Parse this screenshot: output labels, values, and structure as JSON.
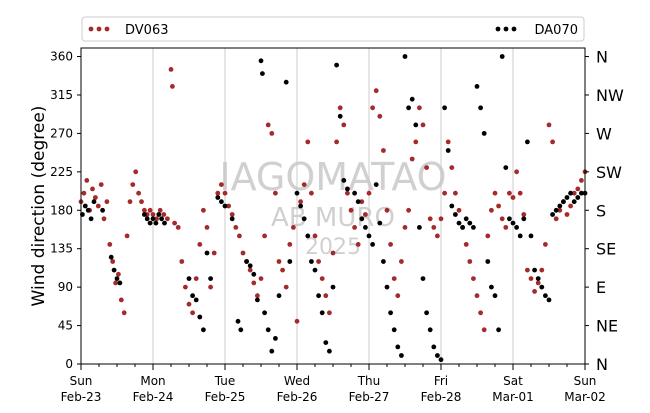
{
  "chart_data": {
    "type": "scatter",
    "ylabel": "Wind direction (degree)",
    "xlabel": "",
    "title": "",
    "ylim": [
      0,
      370
    ],
    "yticks": [
      0,
      45,
      90,
      135,
      180,
      225,
      270,
      315,
      360
    ],
    "compass_labels": [
      {
        "value": 360,
        "label": "N"
      },
      {
        "value": 315,
        "label": "NW"
      },
      {
        "value": 270,
        "label": "W"
      },
      {
        "value": 225,
        "label": "SW"
      },
      {
        "value": 180,
        "label": "S"
      },
      {
        "value": 135,
        "label": "SE"
      },
      {
        "value": 90,
        "label": "E"
      },
      {
        "value": 45,
        "label": "NE"
      },
      {
        "value": 0,
        "label": "N"
      }
    ],
    "xlim_days": [
      0,
      7
    ],
    "xticks": [
      {
        "day": 0,
        "top": "Sun",
        "bottom": "Feb-23"
      },
      {
        "day": 1,
        "top": "Mon",
        "bottom": "Feb-24"
      },
      {
        "day": 2,
        "top": "Tue",
        "bottom": "Feb-25"
      },
      {
        "day": 3,
        "top": "Wed",
        "bottom": "Feb-26"
      },
      {
        "day": 4,
        "top": "Thu",
        "bottom": "Feb-27"
      },
      {
        "day": 5,
        "top": "Fri",
        "bottom": "Feb-28"
      },
      {
        "day": 6,
        "top": "Sat",
        "bottom": "Mar-01"
      },
      {
        "day": 7,
        "top": "Sun",
        "bottom": "Mar-02"
      }
    ],
    "minor_ticks_per_day": 4,
    "grid": "vertical-major",
    "legend_placement": "top",
    "watermark": [
      "IAGOMATAO",
      "AB MURO",
      "2025"
    ],
    "series": [
      {
        "name": "DV063",
        "color": "#a52a2a",
        "points": [
          [
            0.0,
            190
          ],
          [
            0.04,
            200
          ],
          [
            0.08,
            215
          ],
          [
            0.12,
            180
          ],
          [
            0.16,
            205
          ],
          [
            0.2,
            195
          ],
          [
            0.24,
            185
          ],
          [
            0.28,
            210
          ],
          [
            0.32,
            170
          ],
          [
            0.36,
            190
          ],
          [
            0.4,
            140
          ],
          [
            0.44,
            120
          ],
          [
            0.48,
            95
          ],
          [
            0.52,
            105
          ],
          [
            0.56,
            75
          ],
          [
            0.6,
            60
          ],
          [
            0.64,
            150
          ],
          [
            0.68,
            190
          ],
          [
            0.72,
            210
          ],
          [
            0.76,
            225
          ],
          [
            0.8,
            200
          ],
          [
            0.84,
            190
          ],
          [
            0.88,
            180
          ],
          [
            0.92,
            175
          ],
          [
            0.96,
            180
          ],
          [
            1.0,
            175
          ],
          [
            1.05,
            170
          ],
          [
            1.1,
            180
          ],
          [
            1.15,
            175
          ],
          [
            1.2,
            170
          ],
          [
            1.25,
            345
          ],
          [
            1.27,
            325
          ],
          [
            1.3,
            165
          ],
          [
            1.35,
            160
          ],
          [
            1.4,
            120
          ],
          [
            1.45,
            90
          ],
          [
            1.5,
            70
          ],
          [
            1.55,
            60
          ],
          [
            1.6,
            100
          ],
          [
            1.65,
            140
          ],
          [
            1.7,
            180
          ],
          [
            1.75,
            160
          ],
          [
            1.8,
            90
          ],
          [
            1.85,
            130
          ],
          [
            1.9,
            200
          ],
          [
            1.95,
            210
          ],
          [
            2.0,
            200
          ],
          [
            2.05,
            185
          ],
          [
            2.1,
            175
          ],
          [
            2.15,
            160
          ],
          [
            2.2,
            150
          ],
          [
            2.25,
            130
          ],
          [
            2.3,
            120
          ],
          [
            2.35,
            110
          ],
          [
            2.4,
            95
          ],
          [
            2.45,
            80
          ],
          [
            2.5,
            100
          ],
          [
            2.55,
            150
          ],
          [
            2.6,
            280
          ],
          [
            2.65,
            270
          ],
          [
            2.7,
            200
          ],
          [
            2.75,
            120
          ],
          [
            2.8,
            110
          ],
          [
            2.85,
            90
          ],
          [
            2.9,
            140
          ],
          [
            2.95,
            160
          ],
          [
            3.0,
            50
          ],
          [
            3.05,
            190
          ],
          [
            3.1,
            210
          ],
          [
            3.15,
            260
          ],
          [
            3.2,
            200
          ],
          [
            3.25,
            150
          ],
          [
            3.3,
            120
          ],
          [
            3.35,
            100
          ],
          [
            3.4,
            80
          ],
          [
            3.45,
            60
          ],
          [
            3.5,
            130
          ],
          [
            3.55,
            260
          ],
          [
            3.6,
            300
          ],
          [
            3.65,
            280
          ],
          [
            3.7,
            200
          ],
          [
            3.75,
            180
          ],
          [
            3.8,
            160
          ],
          [
            3.85,
            140
          ],
          [
            3.9,
            190
          ],
          [
            3.95,
            175
          ],
          [
            4.0,
            200
          ],
          [
            4.05,
            300
          ],
          [
            4.1,
            320
          ],
          [
            4.15,
            290
          ],
          [
            4.2,
            250
          ],
          [
            4.25,
            180
          ],
          [
            4.3,
            140
          ],
          [
            4.35,
            100
          ],
          [
            4.4,
            80
          ],
          [
            4.45,
            120
          ],
          [
            4.5,
            160
          ],
          [
            4.55,
            180
          ],
          [
            4.6,
            240
          ],
          [
            4.65,
            260
          ],
          [
            4.7,
            300
          ],
          [
            4.75,
            280
          ],
          [
            4.8,
            230
          ],
          [
            4.85,
            170
          ],
          [
            4.9,
            160
          ],
          [
            4.95,
            150
          ],
          [
            5.0,
            170
          ],
          [
            5.05,
            200
          ],
          [
            5.1,
            260
          ],
          [
            5.15,
            230
          ],
          [
            5.2,
            200
          ],
          [
            5.25,
            180
          ],
          [
            5.3,
            160
          ],
          [
            5.35,
            140
          ],
          [
            5.4,
            120
          ],
          [
            5.45,
            100
          ],
          [
            5.5,
            80
          ],
          [
            5.55,
            60
          ],
          [
            5.6,
            40
          ],
          [
            5.65,
            150
          ],
          [
            5.7,
            180
          ],
          [
            5.75,
            200
          ],
          [
            5.8,
            185
          ],
          [
            5.85,
            170
          ],
          [
            5.9,
            160
          ],
          [
            5.95,
            200
          ],
          [
            6.0,
            195
          ],
          [
            6.05,
            225
          ],
          [
            6.1,
            200
          ],
          [
            6.15,
            175
          ],
          [
            6.2,
            110
          ],
          [
            6.25,
            100
          ],
          [
            6.3,
            85
          ],
          [
            6.35,
            95
          ],
          [
            6.4,
            110
          ],
          [
            6.45,
            140
          ],
          [
            6.5,
            280
          ],
          [
            6.55,
            260
          ],
          [
            6.6,
            170
          ],
          [
            6.65,
            180
          ],
          [
            6.7,
            190
          ],
          [
            6.75,
            175
          ],
          [
            6.8,
            185
          ],
          [
            6.85,
            200
          ],
          [
            6.9,
            205
          ],
          [
            6.95,
            215
          ],
          [
            7.0,
            225
          ]
        ]
      },
      {
        "name": "DA070",
        "color": "#000000",
        "points": [
          [
            0.02,
            175
          ],
          [
            0.06,
            185
          ],
          [
            0.1,
            180
          ],
          [
            0.14,
            170
          ],
          [
            0.18,
            190
          ],
          [
            0.3,
            180
          ],
          [
            0.42,
            125
          ],
          [
            0.46,
            110
          ],
          [
            0.5,
            100
          ],
          [
            0.54,
            95
          ],
          [
            0.88,
            175
          ],
          [
            0.92,
            170
          ],
          [
            0.96,
            165
          ],
          [
            1.0,
            170
          ],
          [
            1.04,
            165
          ],
          [
            1.08,
            175
          ],
          [
            1.12,
            170
          ],
          [
            1.16,
            165
          ],
          [
            1.5,
            100
          ],
          [
            1.55,
            80
          ],
          [
            1.6,
            75
          ],
          [
            1.65,
            55
          ],
          [
            1.7,
            40
          ],
          [
            1.75,
            130
          ],
          [
            1.8,
            100
          ],
          [
            1.9,
            195
          ],
          [
            1.95,
            190
          ],
          [
            2.0,
            185
          ],
          [
            2.1,
            170
          ],
          [
            2.18,
            50
          ],
          [
            2.22,
            40
          ],
          [
            2.3,
            120
          ],
          [
            2.35,
            115
          ],
          [
            2.4,
            105
          ],
          [
            2.45,
            75
          ],
          [
            2.5,
            355
          ],
          [
            2.52,
            340
          ],
          [
            2.55,
            60
          ],
          [
            2.6,
            40
          ],
          [
            2.65,
            15
          ],
          [
            2.7,
            30
          ],
          [
            2.75,
            80
          ],
          [
            2.85,
            330
          ],
          [
            2.9,
            120
          ],
          [
            3.0,
            200
          ],
          [
            3.05,
            185
          ],
          [
            3.1,
            170
          ],
          [
            3.15,
            150
          ],
          [
            3.2,
            120
          ],
          [
            3.25,
            110
          ],
          [
            3.3,
            80
          ],
          [
            3.35,
            60
          ],
          [
            3.4,
            25
          ],
          [
            3.45,
            15
          ],
          [
            3.5,
            90
          ],
          [
            3.55,
            350
          ],
          [
            3.6,
            290
          ],
          [
            3.65,
            215
          ],
          [
            3.7,
            205
          ],
          [
            3.8,
            200
          ],
          [
            3.85,
            190
          ],
          [
            3.9,
            170
          ],
          [
            3.95,
            160
          ],
          [
            4.0,
            150
          ],
          [
            4.05,
            140
          ],
          [
            4.1,
            210
          ],
          [
            4.15,
            165
          ],
          [
            4.2,
            120
          ],
          [
            4.25,
            90
          ],
          [
            4.3,
            60
          ],
          [
            4.35,
            40
          ],
          [
            4.4,
            20
          ],
          [
            4.45,
            10
          ],
          [
            4.5,
            360
          ],
          [
            4.55,
            300
          ],
          [
            4.6,
            310
          ],
          [
            4.65,
            280
          ],
          [
            4.7,
            160
          ],
          [
            4.75,
            100
          ],
          [
            4.8,
            60
          ],
          [
            4.85,
            40
          ],
          [
            4.9,
            20
          ],
          [
            4.95,
            10
          ],
          [
            5.0,
            5
          ],
          [
            5.05,
            300
          ],
          [
            5.1,
            250
          ],
          [
            5.15,
            185
          ],
          [
            5.2,
            175
          ],
          [
            5.25,
            165
          ],
          [
            5.3,
            160
          ],
          [
            5.35,
            170
          ],
          [
            5.4,
            165
          ],
          [
            5.45,
            160
          ],
          [
            5.5,
            325
          ],
          [
            5.55,
            300
          ],
          [
            5.6,
            270
          ],
          [
            5.65,
            120
          ],
          [
            5.7,
            90
          ],
          [
            5.75,
            80
          ],
          [
            5.8,
            40
          ],
          [
            5.85,
            360
          ],
          [
            5.9,
            230
          ],
          [
            5.95,
            170
          ],
          [
            6.0,
            165
          ],
          [
            6.05,
            160
          ],
          [
            6.1,
            150
          ],
          [
            6.15,
            170
          ],
          [
            6.2,
            260
          ],
          [
            6.25,
            150
          ],
          [
            6.3,
            110
          ],
          [
            6.35,
            100
          ],
          [
            6.4,
            90
          ],
          [
            6.45,
            80
          ],
          [
            6.5,
            75
          ],
          [
            6.55,
            175
          ],
          [
            6.6,
            180
          ],
          [
            6.65,
            185
          ],
          [
            6.7,
            190
          ],
          [
            6.75,
            195
          ],
          [
            6.8,
            200
          ],
          [
            6.85,
            190
          ],
          [
            6.9,
            195
          ],
          [
            6.95,
            200
          ],
          [
            7.0,
            200
          ]
        ]
      }
    ]
  }
}
